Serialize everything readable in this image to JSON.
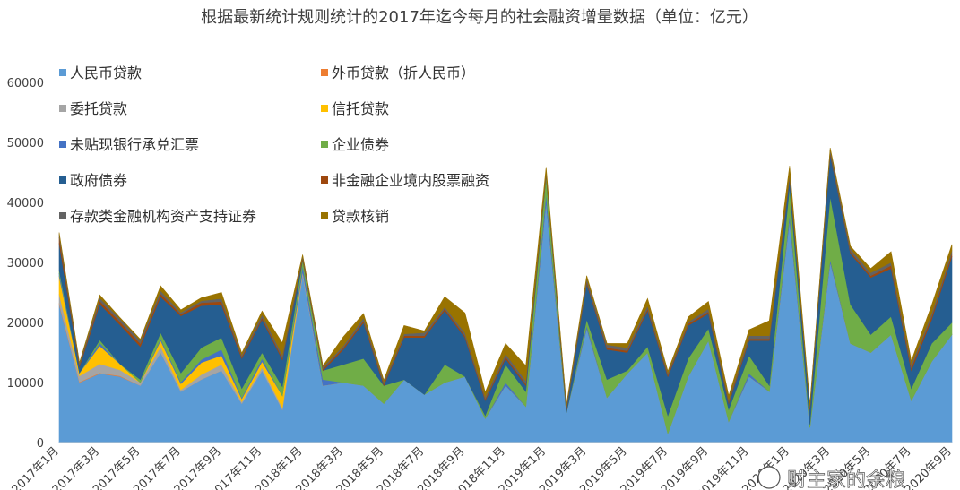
{
  "chart_data": {
    "type": "area",
    "stacked": true,
    "title": "根据最新统计规则统计的2017年迄今每月的社会融资增量数据（单位：亿元）",
    "xlabel": "",
    "ylabel": "",
    "ylim": [
      0,
      60000
    ],
    "yticks": [
      "0",
      "10000",
      "20000",
      "30000",
      "40000",
      "50000",
      "60000"
    ],
    "xtick_labels": [
      "2017年1月",
      "2017年3月",
      "2017年5月",
      "2017年7月",
      "2017年9月",
      "2017年11月",
      "2018年1月",
      "2018年3月",
      "2018年5月",
      "2018年7月",
      "2018年9月",
      "2018年11月",
      "2019年1月",
      "2019年3月",
      "2019年5月",
      "2019年7月",
      "2019年9月",
      "2019年11月",
      "2020年1月",
      "2020年3月",
      "2020年5月",
      "2020年7月",
      "2020年9月"
    ],
    "legend_position": "top-left",
    "grid": false,
    "x": [
      "2017年1月",
      "2017年2月",
      "2017年3月",
      "2017年4月",
      "2017年5月",
      "2017年6月",
      "2017年7月",
      "2017年8月",
      "2017年9月",
      "2017年10月",
      "2017年11月",
      "2017年12月",
      "2018年1月",
      "2018年2月",
      "2018年3月",
      "2018年4月",
      "2018年5月",
      "2018年6月",
      "2018年7月",
      "2018年8月",
      "2018年9月",
      "2018年10月",
      "2018年11月",
      "2018年12月",
      "2019年1月",
      "2019年2月",
      "2019年3月",
      "2019年4月",
      "2019年5月",
      "2019年6月",
      "2019年7月",
      "2019年8月",
      "2019年9月",
      "2019年10月",
      "2019年11月",
      "2019年12月",
      "2020年1月",
      "2020年2月",
      "2020年3月",
      "2020年4月",
      "2020年5月",
      "2020年6月",
      "2020年7月",
      "2020年8月",
      "2020年9月"
    ],
    "series": [
      {
        "name": "人民币贷款",
        "color": "#5B9BD5",
        "values": [
          23000,
          10000,
          11500,
          11000,
          9500,
          15000,
          8500,
          10500,
          12000,
          6500,
          12000,
          5500,
          28000,
          9500,
          10000,
          9500,
          6500,
          10500,
          8000,
          10000,
          11000,
          4000,
          9500,
          6000,
          40000,
          5000,
          19000,
          7500,
          11500,
          15000,
          1500,
          11000,
          17000,
          3500,
          11000,
          8500,
          37000,
          2500,
          30000,
          16500,
          15000,
          18000,
          7000,
          13500,
          18000
        ]
      },
      {
        "name": "外币贷款（折人民币）",
        "color": "#ED7D31",
        "values": [
          200,
          100,
          100,
          100,
          0,
          0,
          0,
          0,
          0,
          0,
          0,
          0,
          0,
          0,
          0,
          0,
          0,
          0,
          0,
          0,
          0,
          0,
          0,
          0,
          0,
          0,
          0,
          0,
          0,
          0,
          0,
          0,
          0,
          0,
          0,
          0,
          0,
          0,
          0,
          0,
          0,
          0,
          0,
          0,
          0
        ]
      },
      {
        "name": "委托贷款",
        "color": "#A5A5A5",
        "values": [
          1500,
          1000,
          1500,
          1000,
          500,
          1000,
          300,
          800,
          1000,
          300,
          500,
          300,
          500,
          0,
          0,
          0,
          0,
          0,
          0,
          0,
          0,
          0,
          0,
          0,
          0,
          0,
          0,
          0,
          0,
          0,
          0,
          0,
          0,
          0,
          0,
          0,
          0,
          0,
          0,
          0,
          0,
          0,
          0,
          0,
          0
        ]
      },
      {
        "name": "信托贷款",
        "color": "#FFC000",
        "values": [
          3000,
          500,
          3000,
          1000,
          0,
          1000,
          1000,
          2000,
          1500,
          500,
          1000,
          2000,
          0,
          0,
          0,
          0,
          0,
          0,
          0,
          0,
          0,
          0,
          0,
          0,
          0,
          0,
          0,
          0,
          0,
          0,
          0,
          0,
          0,
          0,
          0,
          0,
          0,
          0,
          0,
          0,
          0,
          0,
          0,
          0,
          0
        ]
      },
      {
        "name": "未贴现银行承兑汇票",
        "color": "#4472C4",
        "values": [
          500,
          0,
          500,
          0,
          0,
          300,
          300,
          500,
          1000,
          200,
          500,
          0,
          1000,
          1000,
          0,
          0,
          0,
          0,
          0,
          0,
          0,
          0,
          500,
          0,
          1500,
          0,
          500,
          0,
          0,
          0,
          0,
          0,
          0,
          0,
          500,
          0,
          1000,
          0,
          500,
          0,
          0,
          0,
          0,
          0,
          0
        ]
      },
      {
        "name": "企业债券",
        "color": "#70AD47",
        "values": [
          500,
          0,
          500,
          0,
          500,
          1000,
          1500,
          2000,
          2000,
          1500,
          1000,
          1500,
          1000,
          1500,
          3000,
          4500,
          3000,
          0,
          0,
          3000,
          0,
          500,
          3000,
          2500,
          3000,
          0,
          1000,
          3000,
          500,
          1000,
          3000,
          3000,
          2000,
          2000,
          3000,
          1000,
          4500,
          500,
          10500,
          6500,
          3000,
          3000,
          2000,
          3000,
          2000
        ]
      },
      {
        "name": "政府债券",
        "color": "#255E91",
        "values": [
          4500,
          1000,
          6000,
          6500,
          5500,
          6000,
          9500,
          7000,
          5500,
          5000,
          5500,
          4500,
          0,
          0,
          2500,
          6000,
          0,
          7000,
          9500,
          9000,
          6500,
          2500,
          1000,
          1000,
          0,
          500,
          6000,
          5000,
          3000,
          6000,
          6500,
          5500,
          2500,
          1000,
          2500,
          7500,
          1500,
          2500,
          7000,
          8500,
          9500,
          8000,
          3000,
          4000,
          11000
        ]
      },
      {
        "name": "非金融企业境内股票融资",
        "color": "#9E480E",
        "values": [
          1000,
          300,
          500,
          500,
          500,
          500,
          300,
          500,
          500,
          300,
          300,
          300,
          300,
          300,
          300,
          300,
          300,
          300,
          300,
          300,
          300,
          300,
          300,
          300,
          300,
          300,
          300,
          300,
          300,
          300,
          300,
          300,
          300,
          300,
          300,
          300,
          300,
          300,
          300,
          300,
          300,
          500,
          500,
          500,
          500
        ]
      },
      {
        "name": "存款类金融机构资产支持证券",
        "color": "#636363",
        "values": [
          500,
          300,
          500,
          500,
          500,
          500,
          300,
          300,
          500,
          300,
          500,
          500,
          300,
          300,
          300,
          500,
          300,
          300,
          500,
          300,
          500,
          300,
          500,
          500,
          300,
          300,
          500,
          500,
          500,
          500,
          300,
          300,
          500,
          300,
          500,
          500,
          300,
          300,
          500,
          500,
          500,
          500,
          500,
          500,
          500
        ]
      },
      {
        "name": "贷款核销",
        "color": "#997300",
        "values": [
          300,
          100,
          500,
          200,
          200,
          800,
          400,
          500,
          1000,
          300,
          600,
          2000,
          200,
          200,
          1500,
          700,
          300,
          1400,
          300,
          1700,
          3300,
          800,
          1700,
          2500,
          800,
          200,
          500,
          200,
          700,
          1200,
          300,
          800,
          1200,
          700,
          1000,
          2500,
          1500,
          200,
          300,
          400,
          700,
          1800,
          600,
          1400,
          1000
        ]
      }
    ]
  },
  "watermark": {
    "text": "财主家的余粮"
  }
}
